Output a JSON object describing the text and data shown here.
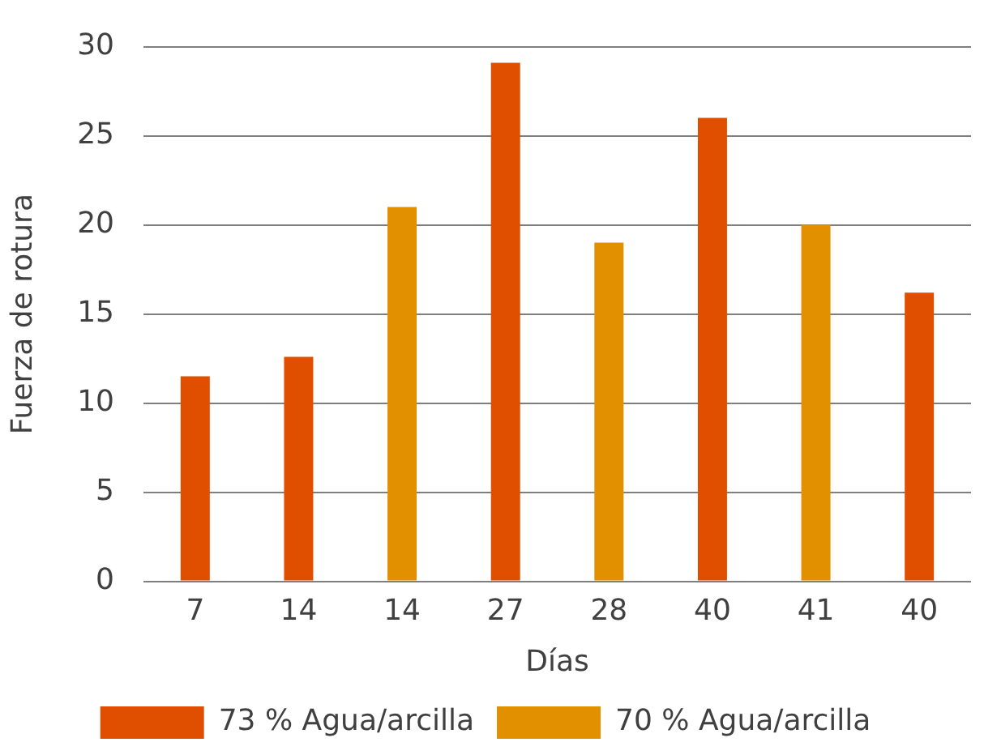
{
  "chart_data": {
    "type": "bar",
    "xlabel": "Días",
    "ylabel": "Fuerza de rotura",
    "categories": [
      "7",
      "14",
      "14",
      "27",
      "28",
      "40",
      "41",
      "40"
    ],
    "series": [
      {
        "name": "73 % Agua/arcilla",
        "color": "#e04e00",
        "values": [
          11.5,
          12.6,
          null,
          29.1,
          null,
          26,
          null,
          16.2
        ]
      },
      {
        "name": "70 % Agua/arcilla",
        "color": "#e39000",
        "values": [
          null,
          null,
          21,
          null,
          19,
          null,
          20,
          null
        ]
      }
    ],
    "ylim": [
      0,
      30
    ],
    "yticks": [
      0,
      5,
      10,
      15,
      20,
      25,
      30
    ],
    "grid": "y",
    "legend": "bottom"
  }
}
